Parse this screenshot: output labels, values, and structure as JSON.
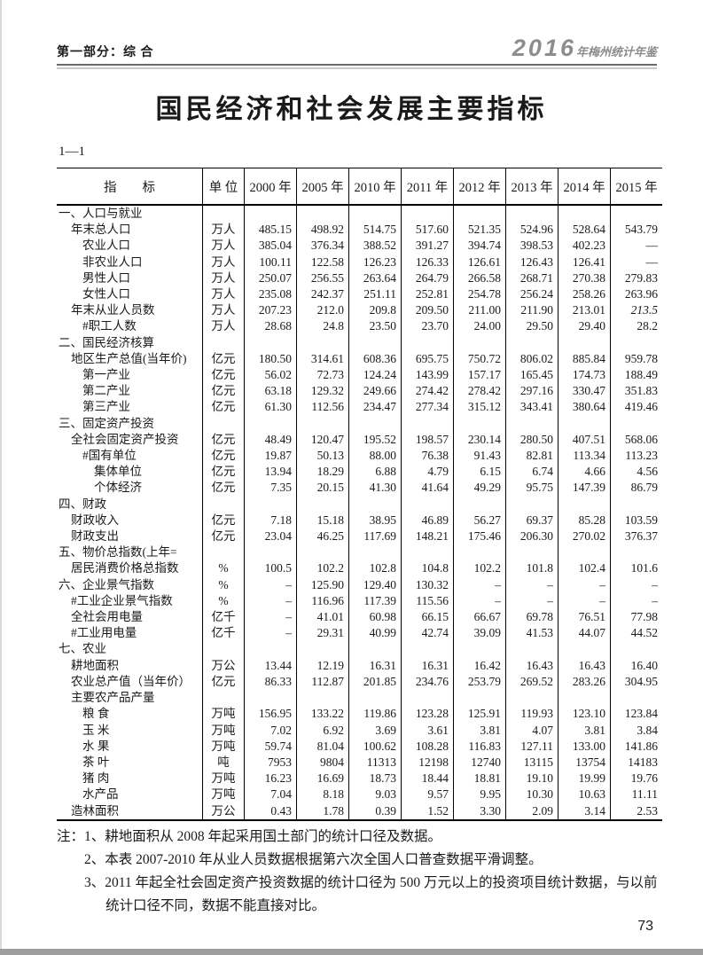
{
  "header": {
    "section": "第一部分：综 合",
    "logo_year": "2016",
    "logo_text": "年梅州统计年鉴"
  },
  "title": "国民经济和社会发展主要指标",
  "table_no": "1—1",
  "page_number": "73",
  "table": {
    "columns": [
      "指　　标",
      "单 位",
      "2000 年",
      "2005 年",
      "2010 年",
      "2011 年",
      "2012 年",
      "2013 年",
      "2014 年",
      "2015 年"
    ],
    "rows": [
      {
        "label": "一、人口与就业",
        "indent": 0,
        "unit": "",
        "values": [
          "",
          "",
          "",
          "",
          "",
          "",
          "",
          ""
        ]
      },
      {
        "label": "年末总人口",
        "indent": 1,
        "unit": "万人",
        "values": [
          "485.15",
          "498.92",
          "514.75",
          "517.60",
          "521.35",
          "524.96",
          "528.64",
          "543.79"
        ]
      },
      {
        "label": "农业人口",
        "indent": 2,
        "unit": "万人",
        "values": [
          "385.04",
          "376.34",
          "388.52",
          "391.27",
          "394.74",
          "398.53",
          "402.23",
          "—"
        ]
      },
      {
        "label": "非农业人口",
        "indent": 2,
        "unit": "万人",
        "values": [
          "100.11",
          "122.58",
          "126.23",
          "126.33",
          "126.61",
          "126.43",
          "126.41",
          "—"
        ]
      },
      {
        "label": "男性人口",
        "indent": 2,
        "unit": "万人",
        "values": [
          "250.07",
          "256.55",
          "263.64",
          "264.79",
          "266.58",
          "268.71",
          "270.38",
          "279.83"
        ]
      },
      {
        "label": "女性人口",
        "indent": 2,
        "unit": "万人",
        "values": [
          "235.08",
          "242.37",
          "251.11",
          "252.81",
          "254.78",
          "256.24",
          "258.26",
          "263.96"
        ]
      },
      {
        "label": "年末从业人员数",
        "indent": 1,
        "unit": "万人",
        "values": [
          "207.23",
          "212.0",
          "209.8",
          "209.50",
          "211.00",
          "211.90",
          "213.01",
          "213.5"
        ],
        "italic": [
          7
        ]
      },
      {
        "label": "#职工人数",
        "indent": 2,
        "unit": "万人",
        "values": [
          "28.68",
          "24.8",
          "23.50",
          "23.70",
          "24.00",
          "29.50",
          "29.40",
          "28.2"
        ]
      },
      {
        "label": "二、国民经济核算",
        "indent": 0,
        "unit": "",
        "values": [
          "",
          "",
          "",
          "",
          "",
          "",
          "",
          ""
        ]
      },
      {
        "label": "地区生产总值(当年价)",
        "indent": 1,
        "unit": "亿元",
        "values": [
          "180.50",
          "314.61",
          "608.36",
          "695.75",
          "750.72",
          "806.02",
          "885.84",
          "959.78"
        ]
      },
      {
        "label": "第一产业",
        "indent": 2,
        "unit": "亿元",
        "values": [
          "56.02",
          "72.73",
          "124.24",
          "143.99",
          "157.17",
          "165.45",
          "174.73",
          "188.49"
        ]
      },
      {
        "label": "第二产业",
        "indent": 2,
        "unit": "亿元",
        "values": [
          "63.18",
          "129.32",
          "249.66",
          "274.42",
          "278.42",
          "297.16",
          "330.47",
          "351.83"
        ]
      },
      {
        "label": "第三产业",
        "indent": 2,
        "unit": "亿元",
        "values": [
          "61.30",
          "112.56",
          "234.47",
          "277.34",
          "315.12",
          "343.41",
          "380.64",
          "419.46"
        ]
      },
      {
        "label": "三、固定资产投资",
        "indent": 0,
        "unit": "",
        "values": [
          "",
          "",
          "",
          "",
          "",
          "",
          "",
          ""
        ]
      },
      {
        "label": "全社会固定资产投资",
        "indent": 1,
        "unit": "亿元",
        "values": [
          "48.49",
          "120.47",
          "195.52",
          "198.57",
          "230.14",
          "280.50",
          "407.51",
          "568.06"
        ]
      },
      {
        "label": "#国有单位",
        "indent": 2,
        "unit": "亿元",
        "values": [
          "19.87",
          "50.13",
          "88.00",
          "76.38",
          "91.43",
          "82.81",
          "113.34",
          "113.23"
        ]
      },
      {
        "label": "集体单位",
        "indent": 3,
        "unit": "亿元",
        "values": [
          "13.94",
          "18.29",
          "6.88",
          "4.79",
          "6.15",
          "6.74",
          "4.66",
          "4.56"
        ]
      },
      {
        "label": "个体经济",
        "indent": 3,
        "unit": "亿元",
        "values": [
          "7.35",
          "20.15",
          "41.30",
          "41.64",
          "49.29",
          "95.75",
          "147.39",
          "86.79"
        ]
      },
      {
        "label": "四、财政",
        "indent": 0,
        "unit": "",
        "values": [
          "",
          "",
          "",
          "",
          "",
          "",
          "",
          ""
        ]
      },
      {
        "label": "财政收入",
        "indent": 1,
        "unit": "亿元",
        "values": [
          "7.18",
          "15.18",
          "38.95",
          "46.89",
          "56.27",
          "69.37",
          "85.28",
          "103.59"
        ]
      },
      {
        "label": "财政支出",
        "indent": 1,
        "unit": "亿元",
        "values": [
          "23.04",
          "46.25",
          "117.69",
          "148.21",
          "175.46",
          "206.30",
          "270.02",
          "376.37"
        ]
      },
      {
        "label": "五、物价总指数(上年=",
        "indent": 0,
        "unit": "",
        "values": [
          "",
          "",
          "",
          "",
          "",
          "",
          "",
          ""
        ]
      },
      {
        "label": "居民消费价格总指数",
        "indent": 1,
        "unit": "%",
        "values": [
          "100.5",
          "102.2",
          "102.8",
          "104.8",
          "102.2",
          "101.8",
          "102.4",
          "101.6"
        ]
      },
      {
        "label": "六、企业景气指数",
        "indent": 0,
        "unit": "%",
        "values": [
          "–",
          "125.90",
          "129.40",
          "130.32",
          "–",
          "–",
          "–",
          "–"
        ]
      },
      {
        "label": "#工业企业景气指数",
        "indent": 1,
        "unit": "%",
        "values": [
          "–",
          "116.96",
          "117.39",
          "115.56",
          "–",
          "–",
          "–",
          "–"
        ]
      },
      {
        "label": "全社会用电量",
        "indent": 1,
        "unit": "亿千",
        "values": [
          "–",
          "41.01",
          "60.98",
          "66.15",
          "66.67",
          "69.78",
          "76.51",
          "77.98"
        ]
      },
      {
        "label": "#工业用电量",
        "indent": 1,
        "unit": "亿千",
        "values": [
          "–",
          "29.31",
          "40.99",
          "42.74",
          "39.09",
          "41.53",
          "44.07",
          "44.52"
        ]
      },
      {
        "label": "七、农业",
        "indent": 0,
        "unit": "",
        "values": [
          "",
          "",
          "",
          "",
          "",
          "",
          "",
          ""
        ]
      },
      {
        "label": "耕地面积",
        "indent": 1,
        "unit": "万公",
        "values": [
          "13.44",
          "12.19",
          "16.31",
          "16.31",
          "16.42",
          "16.43",
          "16.43",
          "16.40"
        ]
      },
      {
        "label": "农业总产值（当年价）",
        "indent": 1,
        "unit": "亿元",
        "values": [
          "86.33",
          "112.87",
          "201.85",
          "234.76",
          "253.79",
          "269.52",
          "283.26",
          "304.95"
        ]
      },
      {
        "label": "主要农产品产量",
        "indent": 1,
        "unit": "",
        "values": [
          "",
          "",
          "",
          "",
          "",
          "",
          "",
          ""
        ]
      },
      {
        "label": "粮 食",
        "indent": 2,
        "unit": "万吨",
        "values": [
          "156.95",
          "133.22",
          "119.86",
          "123.28",
          "125.91",
          "119.93",
          "123.10",
          "123.84"
        ]
      },
      {
        "label": "玉 米",
        "indent": 2,
        "unit": "万吨",
        "values": [
          "7.02",
          "6.92",
          "3.69",
          "3.61",
          "3.81",
          "4.07",
          "3.81",
          "3.84"
        ]
      },
      {
        "label": "水 果",
        "indent": 2,
        "unit": "万吨",
        "values": [
          "59.74",
          "81.04",
          "100.62",
          "108.28",
          "116.83",
          "127.11",
          "133.00",
          "141.86"
        ]
      },
      {
        "label": "茶 叶",
        "indent": 2,
        "unit": "吨",
        "values": [
          "7953",
          "9804",
          "11313",
          "12198",
          "12740",
          "13115",
          "13754",
          "14183"
        ]
      },
      {
        "label": "猪 肉",
        "indent": 2,
        "unit": "万吨",
        "values": [
          "16.23",
          "16.69",
          "18.73",
          "18.44",
          "18.81",
          "19.10",
          "19.99",
          "19.76"
        ]
      },
      {
        "label": "水产品",
        "indent": 2,
        "unit": "万吨",
        "values": [
          "7.04",
          "8.18",
          "9.03",
          "9.57",
          "9.95",
          "10.30",
          "10.63",
          "11.11"
        ]
      },
      {
        "label": "造林面积",
        "indent": 1,
        "unit": "万公",
        "values": [
          "0.43",
          "1.78",
          "0.39",
          "1.52",
          "3.30",
          "2.09",
          "3.14",
          "2.53"
        ]
      }
    ]
  },
  "notes": {
    "prefix": "注：",
    "items": [
      "1、耕地面积从 2008 年起采用国土部门的统计口径及数据。",
      "2、本表 2007-2010 年从业人员数据根据第六次全国人口普查数据平滑调整。",
      "3、2011 年起全社会固定资产投资数据的统计口径为 500 万元以上的投资项目统计数据，与以前统计口径不同，数据不能直接对比。"
    ]
  }
}
